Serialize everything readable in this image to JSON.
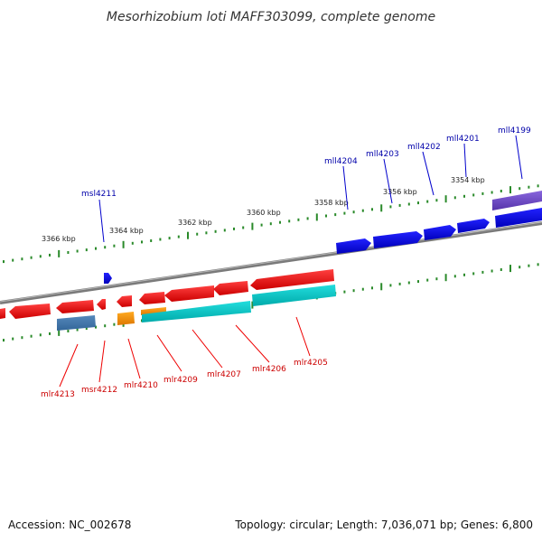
{
  "title": "Mesorhizobium loti MAFF303099, complete genome",
  "footer": {
    "accession": "Accession: NC_002678",
    "summary": "Topology: circular; Length: 7,036,071 bp; Genes: 6,800"
  },
  "scale_labels": [
    "3366 kbp",
    "3364 kbp",
    "3362 kbp",
    "3360 kbp",
    "3358 kbp",
    "3356 kbp",
    "3354 kbp"
  ],
  "genes_top": [
    "msl4211",
    "mll4204",
    "mll4203",
    "mll4202",
    "mll4201",
    "mll4199"
  ],
  "genes_bottom": [
    "mlr4213",
    "msr4212",
    "mlr4210",
    "mlr4209",
    "mlr4207",
    "mlr4206",
    "mlr4205"
  ],
  "colors": {
    "forward_gene": "#ee0000",
    "reverse_gene": "#0000ee",
    "cds_forward": "#00cccc",
    "cds_other": "#ff9900",
    "cds_reverse": "#7755cc",
    "cds_small": "#4477aa",
    "backbone": "#808080",
    "ticks": "#2a8a2a"
  }
}
